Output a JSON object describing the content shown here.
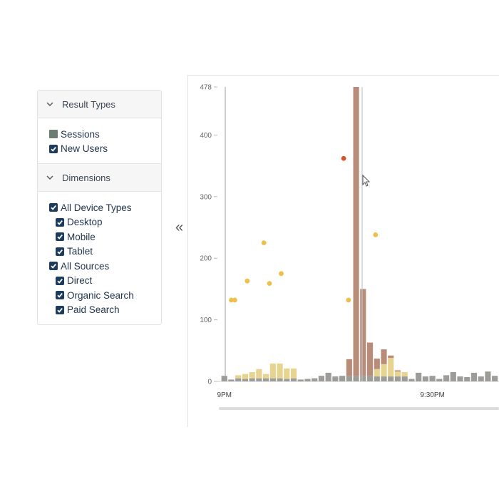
{
  "sidebar": {
    "sections": [
      {
        "title": "Result Types",
        "items": [
          {
            "label": "Sessions",
            "checked": true,
            "swatch": "#6b7c74",
            "level": 0
          },
          {
            "label": "New Users",
            "checked": true,
            "level": 0
          }
        ]
      },
      {
        "title": "Dimensions",
        "items": [
          {
            "label": "All Device Types",
            "checked": true,
            "level": 0
          },
          {
            "label": "Desktop",
            "checked": true,
            "level": 1
          },
          {
            "label": "Mobile",
            "checked": true,
            "level": 1
          },
          {
            "label": "Tablet",
            "checked": true,
            "level": 1
          },
          {
            "label": "All Sources",
            "checked": true,
            "level": 0
          },
          {
            "label": "Direct",
            "checked": true,
            "level": 1
          },
          {
            "label": "Organic Search",
            "checked": true,
            "level": 1
          },
          {
            "label": "Paid Search",
            "checked": true,
            "level": 1
          }
        ]
      }
    ]
  },
  "collapse_button": "«",
  "chart_data": {
    "type": "bar",
    "x": [
      0,
      1,
      2,
      3,
      4,
      5,
      6,
      7,
      8,
      9,
      10,
      11,
      12,
      13,
      14,
      15,
      16,
      17,
      18,
      19,
      20,
      21,
      22,
      23,
      24,
      25,
      26,
      27,
      28,
      29,
      30,
      31,
      32,
      33,
      34,
      35,
      36,
      37,
      38,
      39
    ],
    "xlim": [
      -1,
      39.6
    ],
    "xticks": [
      {
        "value": 0,
        "label": "9PM"
      },
      {
        "value": 30,
        "label": "9:30PM"
      }
    ],
    "ylim": [
      0,
      478
    ],
    "yticks": [
      0,
      100,
      200,
      300,
      400,
      478
    ],
    "series": [
      {
        "type": "bar",
        "color": "#9d9c96",
        "values": [
          9,
          3,
          5,
          4,
          5,
          5,
          5,
          5,
          5,
          4,
          5,
          3,
          4,
          5,
          9,
          14,
          8,
          9,
          9,
          9,
          9,
          9,
          8,
          8,
          8,
          8,
          8,
          4,
          14,
          8,
          9,
          4,
          10,
          15,
          8,
          7,
          14,
          8,
          16,
          9
        ]
      },
      {
        "type": "bar",
        "color": "#e8d491",
        "values": [
          0,
          0,
          5,
          8,
          10,
          15,
          7,
          24,
          24,
          17,
          16,
          0,
          0,
          0,
          0,
          0,
          0,
          0,
          0,
          0,
          0,
          0,
          12,
          20,
          30,
          8,
          7,
          0,
          0,
          0,
          0,
          0,
          0,
          0,
          0,
          0,
          0,
          0,
          0,
          0
        ]
      },
      {
        "type": "bar",
        "color": "#b98c79",
        "values": [
          0,
          0,
          0,
          0,
          0,
          0,
          0,
          0,
          0,
          0,
          0,
          0,
          0,
          0,
          0,
          0,
          0,
          0,
          27,
          469,
          141,
          54,
          17,
          24,
          4,
          2,
          0,
          0,
          0,
          0,
          0,
          0,
          0,
          0,
          0,
          0,
          0,
          0,
          0,
          0
        ]
      },
      {
        "type": "scatter",
        "color": "#ecc04a",
        "x": [
          1.0,
          1.5,
          3.3,
          5.7,
          6.5,
          8.2,
          17.9,
          21.8
        ],
        "values": [
          132,
          132,
          163,
          225,
          159,
          175,
          132,
          238
        ]
      },
      {
        "type": "scatter",
        "color": "#d6532c",
        "x": [
          17.2
        ],
        "values": [
          362
        ]
      }
    ]
  }
}
